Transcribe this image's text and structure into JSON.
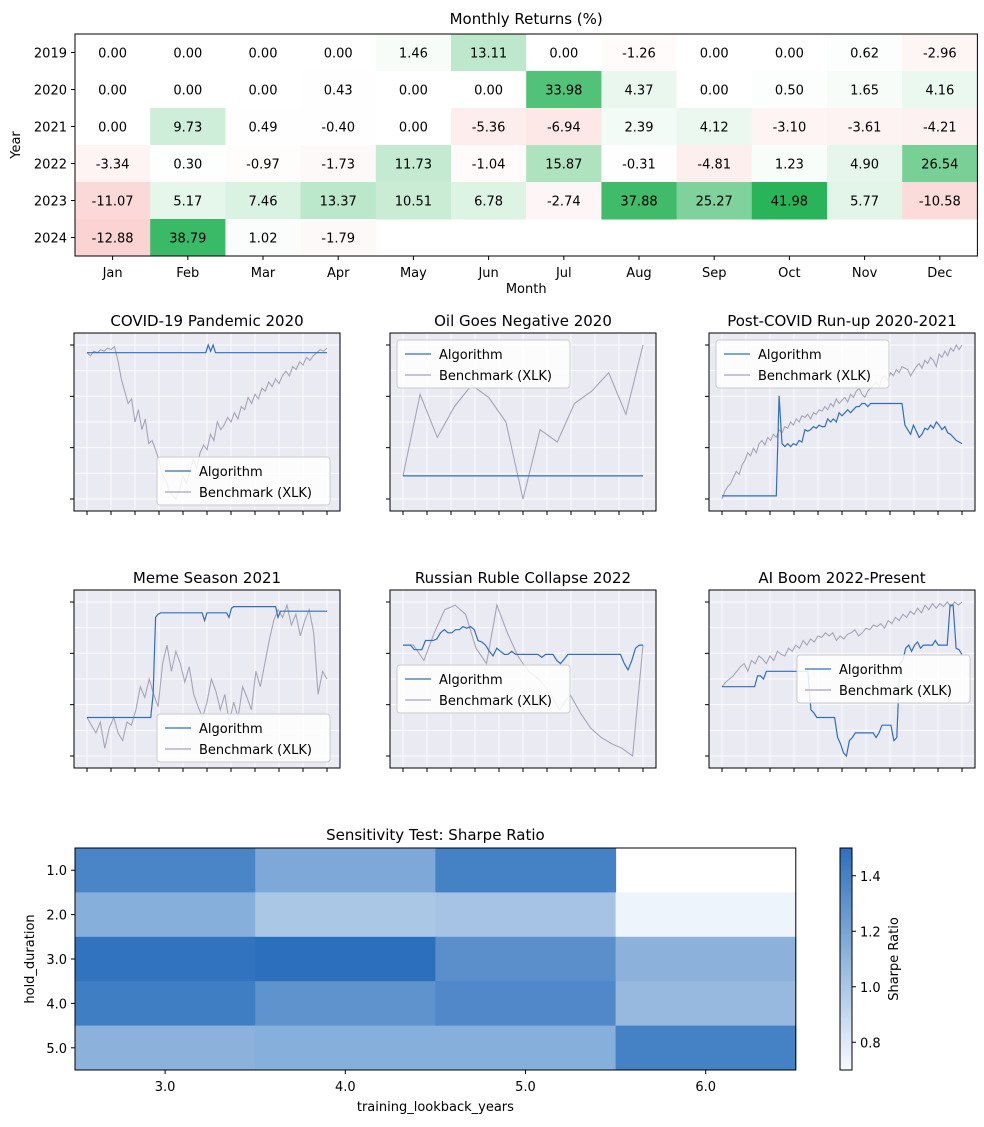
{
  "chart_data": [
    {
      "type": "heatmap",
      "title": "Monthly Returns (%)",
      "xlabel": "Month",
      "ylabel": "Year",
      "x_categories": [
        "Jan",
        "Feb",
        "Mar",
        "Apr",
        "May",
        "Jun",
        "Jul",
        "Aug",
        "Sep",
        "Oct",
        "Nov",
        "Dec"
      ],
      "y_categories": [
        "2019",
        "2020",
        "2021",
        "2022",
        "2023",
        "2024"
      ],
      "values": [
        [
          "0.00",
          "0.00",
          "0.00",
          "0.00",
          "1.46",
          "13.11",
          "0.00",
          "-1.26",
          "0.00",
          "0.00",
          "0.62",
          "-2.96"
        ],
        [
          "0.00",
          "0.00",
          "0.00",
          "0.43",
          "0.00",
          "0.00",
          "33.98",
          "4.37",
          "0.00",
          "0.50",
          "1.65",
          "4.16"
        ],
        [
          "0.00",
          "9.73",
          "0.49",
          "-0.40",
          "0.00",
          "-5.36",
          "-6.94",
          "2.39",
          "4.12",
          "-3.10",
          "-3.61",
          "-4.21"
        ],
        [
          "-3.34",
          "0.30",
          "-0.97",
          "-1.73",
          "11.73",
          "-1.04",
          "15.87",
          "-0.31",
          "-4.81",
          "1.23",
          "4.90",
          "26.54"
        ],
        [
          "-11.07",
          "5.17",
          "7.46",
          "13.37",
          "10.51",
          "6.78",
          "-2.74",
          "37.88",
          "25.27",
          "41.98",
          "5.77",
          "-10.58"
        ],
        [
          "-12.88",
          "38.79",
          "1.02",
          "-1.79",
          "",
          "",
          "",
          "",
          "",
          "",
          "",
          ""
        ]
      ],
      "colors": {
        "positive": "#2ab459",
        "negative": "#f9bbbb"
      },
      "color_range": [
        -20,
        42
      ]
    },
    {
      "type": "line",
      "title": "COVID-19 Pandemic 2020",
      "legend_loc": "lower-right",
      "series": [
        {
          "name": "Algorithm",
          "color": "#2f6fbf",
          "values": [
            0.95,
            0.95,
            0.95,
            0.95,
            0.95,
            0.95,
            0.95,
            0.95,
            0.95,
            0.95,
            0.95,
            0.95,
            0.95,
            0.95,
            0.95,
            0.95,
            0.95,
            0.95,
            0.95,
            0.95,
            0.95,
            0.95,
            0.95,
            0.95,
            0.95,
            0.95,
            0.95,
            0.95,
            0.95,
            0.95,
            0.95,
            0.95,
            0.95,
            0.95,
            0.95,
            0.95,
            0.95,
            0.95,
            0.95,
            0.95,
            0.95,
            0.95,
            0.95,
            0.95,
            0.95,
            0.95,
            0.95,
            0.95,
            0.95,
            0.95,
            1.0,
            0.96,
            1.0,
            0.95,
            0.95,
            0.95,
            0.95,
            0.95,
            0.95,
            0.95,
            0.95,
            0.95,
            0.95,
            0.95,
            0.95,
            0.95,
            0.95,
            0.95,
            0.95,
            0.95,
            0.95,
            0.95,
            0.95,
            0.95,
            0.95,
            0.95,
            0.95,
            0.95,
            0.95,
            0.95,
            0.95,
            0.95,
            0.95,
            0.95,
            0.95,
            0.95,
            0.95,
            0.95,
            0.95,
            0.95,
            0.95,
            0.95,
            0.95,
            0.95,
            0.95,
            0.95,
            0.95,
            0.95,
            0.95,
            0.95
          ]
        },
        {
          "name": "Benchmark (XLK)",
          "color": "#a7a4ba",
          "values": [
            0.95,
            0.93,
            0.96,
            0.95,
            0.97,
            0.96,
            0.98,
            0.97,
            0.99,
            0.9,
            0.78,
            0.7,
            0.62,
            0.65,
            0.5,
            0.58,
            0.45,
            0.52,
            0.36,
            0.38,
            0.32,
            0.25,
            0.16,
            0.12,
            0.05,
            0.02,
            0.0,
            0.06,
            0.15,
            0.1,
            0.18,
            0.26,
            0.2,
            0.3,
            0.35,
            0.32,
            0.42,
            0.38,
            0.5,
            0.45,
            0.48,
            0.53,
            0.5,
            0.56,
            0.52,
            0.6,
            0.58,
            0.66,
            0.62,
            0.68,
            0.65,
            0.72,
            0.7,
            0.76,
            0.73,
            0.78,
            0.75,
            0.8,
            0.83,
            0.8,
            0.86,
            0.84,
            0.89,
            0.87,
            0.92,
            0.9,
            0.93,
            0.95,
            0.97,
            0.96,
            0.98
          ]
        }
      ]
    },
    {
      "type": "line",
      "title": "Oil Goes Negative 2020",
      "legend_loc": "upper-left",
      "series": [
        {
          "name": "Algorithm",
          "color": "#2f6fbf",
          "values": [
            0.15,
            0.15
          ]
        },
        {
          "name": "Benchmark (XLK)",
          "color": "#a7a4ba",
          "values": [
            0.15,
            0.68,
            0.4,
            0.6,
            0.74,
            0.66,
            0.5,
            0.0,
            0.45,
            0.37,
            0.62,
            0.7,
            0.82,
            0.55,
            1.0
          ]
        }
      ]
    },
    {
      "type": "line",
      "title": "Post-COVID Run-up 2020-2021",
      "legend_loc": "upper-left",
      "series": [
        {
          "name": "Algorithm",
          "color": "#2f6fbf",
          "values": [
            0.02,
            0.02,
            0.02,
            0.02,
            0.02,
            0.02,
            0.02,
            0.02,
            0.02,
            0.02,
            0.02,
            0.02,
            0.02,
            0.02,
            0.02,
            0.02,
            0.02,
            0.02,
            0.02,
            0.02,
            0.67,
            0.36,
            0.34,
            0.36,
            0.34,
            0.36,
            0.35,
            0.38,
            0.37,
            0.45,
            0.44,
            0.45,
            0.47,
            0.46,
            0.48,
            0.47,
            0.47,
            0.52,
            0.5,
            0.52,
            0.5,
            0.56,
            0.54,
            0.56,
            0.58,
            0.56,
            0.58,
            0.6,
            0.6,
            0.62,
            0.62,
            0.6,
            0.62,
            0.62,
            0.62,
            0.62,
            0.62,
            0.62,
            0.62,
            0.62,
            0.62,
            0.62,
            0.62,
            0.62,
            0.48,
            0.45,
            0.42,
            0.48,
            0.44,
            0.4,
            0.42,
            0.46,
            0.45,
            0.48,
            0.46,
            0.5,
            0.48,
            0.45,
            0.47,
            0.43,
            0.42,
            0.4,
            0.38,
            0.37,
            0.36
          ]
        },
        {
          "name": "Benchmark (XLK)",
          "color": "#a7a4ba",
          "values": [
            0.0,
            0.05,
            0.08,
            0.1,
            0.14,
            0.18,
            0.16,
            0.22,
            0.25,
            0.3,
            0.28,
            0.33,
            0.3,
            0.36,
            0.38,
            0.35,
            0.4,
            0.38,
            0.42,
            0.4,
            0.45,
            0.43,
            0.47,
            0.46,
            0.5,
            0.48,
            0.52,
            0.5,
            0.54,
            0.53,
            0.55,
            0.52,
            0.56,
            0.55,
            0.58,
            0.57,
            0.6,
            0.58,
            0.62,
            0.6,
            0.65,
            0.62,
            0.64,
            0.66,
            0.63,
            0.68,
            0.66,
            0.7,
            0.72,
            0.68,
            0.66,
            0.7,
            0.72,
            0.74,
            0.76,
            0.73,
            0.78,
            0.8,
            0.77,
            0.82,
            0.8,
            0.84,
            0.82,
            0.86,
            0.85,
            0.84,
            0.8,
            0.83,
            0.86,
            0.88,
            0.85,
            0.9,
            0.88,
            0.92,
            0.9,
            0.86,
            0.94,
            0.92,
            0.96,
            0.93,
            0.98,
            0.96,
            1.0,
            0.97,
            1.0
          ]
        }
      ]
    },
    {
      "type": "line",
      "title": "Meme Season 2021",
      "legend_loc": "lower-right",
      "series": [
        {
          "name": "Algorithm",
          "color": "#2f6fbf",
          "values": [
            0.25,
            0.25,
            0.25,
            0.25,
            0.25,
            0.25,
            0.25,
            0.25,
            0.25,
            0.25,
            0.25,
            0.25,
            0.25,
            0.25,
            0.25,
            0.25,
            0.25,
            0.25,
            0.25,
            0.25,
            0.25,
            0.25,
            0.25,
            0.25,
            0.25,
            0.25,
            0.25,
            0.4,
            0.9,
            0.92,
            0.93,
            0.93,
            0.93,
            0.93,
            0.93,
            0.93,
            0.93,
            0.93,
            0.93,
            0.93,
            0.93,
            0.93,
            0.93,
            0.93,
            0.93,
            0.93,
            0.93,
            0.93,
            0.88,
            0.93,
            0.93,
            0.93,
            0.93,
            0.93,
            0.93,
            0.93,
            0.93,
            0.93,
            0.9,
            0.96,
            0.97,
            0.97,
            0.97,
            0.97,
            0.97,
            0.97,
            0.97,
            0.97,
            0.97,
            0.97,
            0.97,
            0.97,
            0.97,
            0.97,
            0.97,
            0.97,
            0.97,
            0.97,
            0.9,
            0.94,
            0.94,
            0.94,
            0.94,
            0.94,
            0.94,
            0.94,
            0.94,
            0.94,
            0.94,
            0.94,
            0.94,
            0.94,
            0.94,
            0.94,
            0.94,
            0.94,
            0.94,
            0.94,
            0.94
          ]
        },
        {
          "name": "Benchmark (XLK)",
          "color": "#a7a4ba",
          "values": [
            0.25,
            0.2,
            0.15,
            0.22,
            0.05,
            0.18,
            0.25,
            0.15,
            0.1,
            0.22,
            0.2,
            0.3,
            0.45,
            0.38,
            0.5,
            0.4,
            0.32,
            0.6,
            0.72,
            0.55,
            0.68,
            0.6,
            0.48,
            0.58,
            0.4,
            0.32,
            0.25,
            0.35,
            0.5,
            0.42,
            0.3,
            0.4,
            0.22,
            0.35,
            0.25,
            0.45,
            0.38,
            0.3,
            0.55,
            0.45,
            0.6,
            0.75,
            0.88,
            0.95,
            0.9,
            0.98,
            0.85,
            0.92,
            0.78,
            0.88,
            0.95,
            0.8,
            0.4,
            0.55,
            0.5
          ]
        }
      ]
    },
    {
      "type": "line",
      "title": "Russian Ruble Collapse 2022",
      "legend_loc": "center-left",
      "series": [
        {
          "name": "Algorithm",
          "color": "#2f6fbf",
          "values": [
            0.72,
            0.72,
            0.72,
            0.69,
            0.69,
            0.69,
            0.75,
            0.75,
            0.75,
            0.76,
            0.8,
            0.82,
            0.8,
            0.8,
            0.82,
            0.82,
            0.84,
            0.83,
            0.84,
            0.82,
            0.75,
            0.74,
            0.72,
            0.68,
            0.65,
            0.7,
            0.68,
            0.66,
            0.66,
            0.68,
            0.66,
            0.66,
            0.66,
            0.66,
            0.66,
            0.66,
            0.66,
            0.64,
            0.66,
            0.66,
            0.66,
            0.62,
            0.6,
            0.63,
            0.66,
            0.66,
            0.66,
            0.66,
            0.66,
            0.66,
            0.66,
            0.66,
            0.66,
            0.66,
            0.66,
            0.66,
            0.66,
            0.66,
            0.66,
            0.6,
            0.56,
            0.62,
            0.7,
            0.72,
            0.72
          ]
        },
        {
          "name": "Benchmark (XLK)",
          "color": "#a7a4ba",
          "values": [
            0.72,
            0.72,
            0.62,
            0.8,
            0.95,
            0.98,
            0.92,
            0.7,
            0.6,
            0.98,
            0.8,
            0.65,
            0.55,
            0.5,
            0.42,
            0.3,
            0.4,
            0.28,
            0.18,
            0.12,
            0.08,
            0.05,
            0.0,
            0.72
          ]
        }
      ]
    },
    {
      "type": "line",
      "title": "AI Boom 2022-Present",
      "legend_loc": "center-right",
      "series": [
        {
          "name": "Algorithm",
          "color": "#2f6fbf",
          "values": [
            0.45,
            0.45,
            0.45,
            0.45,
            0.45,
            0.45,
            0.45,
            0.45,
            0.45,
            0.45,
            0.45,
            0.45,
            0.52,
            0.52,
            0.5,
            0.55,
            0.55,
            0.55,
            0.55,
            0.55,
            0.55,
            0.55,
            0.55,
            0.55,
            0.55,
            0.55,
            0.55,
            0.55,
            0.55,
            0.55,
            0.3,
            0.28,
            0.25,
            0.25,
            0.25,
            0.25,
            0.25,
            0.25,
            0.25,
            0.12,
            0.08,
            0.02,
            0.0,
            0.1,
            0.12,
            0.15,
            0.15,
            0.15,
            0.15,
            0.15,
            0.15,
            0.15,
            0.12,
            0.15,
            0.2,
            0.2,
            0.2,
            0.2,
            0.1,
            0.12,
            0.6,
            0.62,
            0.7,
            0.72,
            0.68,
            0.72,
            0.74,
            0.7,
            0.72,
            0.72,
            0.72,
            0.72,
            0.75,
            0.72,
            0.72,
            0.72,
            0.72,
            0.98,
            0.98,
            0.7,
            0.69,
            0.66
          ]
        },
        {
          "name": "Benchmark (XLK)",
          "color": "#a7a4ba",
          "values": [
            0.45,
            0.48,
            0.5,
            0.52,
            0.55,
            0.58,
            0.6,
            0.55,
            0.62,
            0.6,
            0.65,
            0.63,
            0.6,
            0.65,
            0.62,
            0.68,
            0.66,
            0.65,
            0.7,
            0.68,
            0.72,
            0.7,
            0.75,
            0.72,
            0.76,
            0.74,
            0.78,
            0.77,
            0.8,
            0.78,
            0.8,
            0.75,
            0.78,
            0.76,
            0.79,
            0.8,
            0.82,
            0.78,
            0.8,
            0.83,
            0.82,
            0.85,
            0.84,
            0.86,
            0.83,
            0.88,
            0.86,
            0.9,
            0.88,
            0.92,
            0.9,
            0.94,
            0.92,
            0.96,
            0.93,
            0.98,
            0.95,
            0.99,
            0.96,
            0.99,
            0.97,
            1.0,
            0.97,
            1.0,
            0.98,
            1.0
          ]
        }
      ]
    },
    {
      "type": "heatmap",
      "title": "Sensitivity Test: Sharpe Ratio",
      "xlabel": "training_lookback_years",
      "ylabel": "hold_duration",
      "x_categories": [
        "3.0",
        "4.0",
        "5.0",
        "6.0"
      ],
      "y_categories": [
        "1.0",
        "2.0",
        "3.0",
        "4.0",
        "5.0"
      ],
      "values": [
        [
          1.38,
          1.18,
          1.4,
          null
        ],
        [
          1.14,
          1.0,
          1.02,
          0.74
        ],
        [
          1.48,
          1.5,
          1.32,
          1.12
        ],
        [
          1.42,
          1.3,
          1.36,
          1.08
        ],
        [
          1.12,
          1.14,
          1.14,
          1.4
        ]
      ],
      "colorbar": {
        "label": "Sharpe Ratio",
        "ticks": [
          "0.8",
          "1.0",
          "1.2",
          "1.4"
        ],
        "min": 0.7,
        "max": 1.5
      },
      "colors": {
        "low": "#f7fbff",
        "high": "#2c70bd"
      }
    }
  ]
}
